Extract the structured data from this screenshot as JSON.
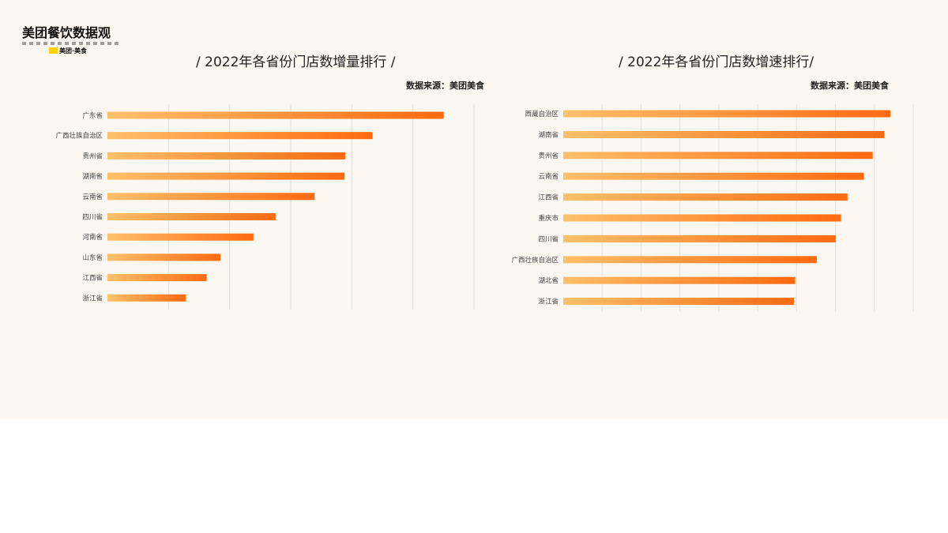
{
  "brand": {
    "title": "美团餐饮数据观",
    "sub_label": "美团·美食"
  },
  "chart_data": [
    {
      "type": "bar",
      "orientation": "horizontal",
      "title": "/ 2022年各省份门店数增量排行 /",
      "source": "数据来源：美团美食",
      "categories": [
        "广东省",
        "广西壮族自治区",
        "贵州省",
        "湖南省",
        "云南省",
        "四川省",
        "河南省",
        "山东省",
        "江西省",
        "浙江省"
      ],
      "values": [
        100,
        78.8,
        70.7,
        70.5,
        61.6,
        50.0,
        43.4,
        33.6,
        29.5,
        23.3
      ],
      "xlim": [
        0,
        109
      ],
      "grid": true,
      "bar_gradient": [
        "#ffc06a",
        "#ff6a10"
      ]
    },
    {
      "type": "bar",
      "orientation": "horizontal",
      "title": "/ 2022年各省份门店数增速排行/",
      "source": "数据来源：美团美食",
      "categories": [
        "西藏自治区",
        "湖南省",
        "贵州省",
        "云南省",
        "江西省",
        "重庆市",
        "四川省",
        "广西壮族自治区",
        "湖北省",
        "浙江省"
      ],
      "values": [
        100,
        98.2,
        94.6,
        91.9,
        86.9,
        84.9,
        83.3,
        77.5,
        70.9,
        70.5
      ],
      "xlim": [
        0,
        107
      ],
      "grid": true,
      "bar_gradient": [
        "#ffc06a",
        "#ff6a10"
      ]
    }
  ]
}
